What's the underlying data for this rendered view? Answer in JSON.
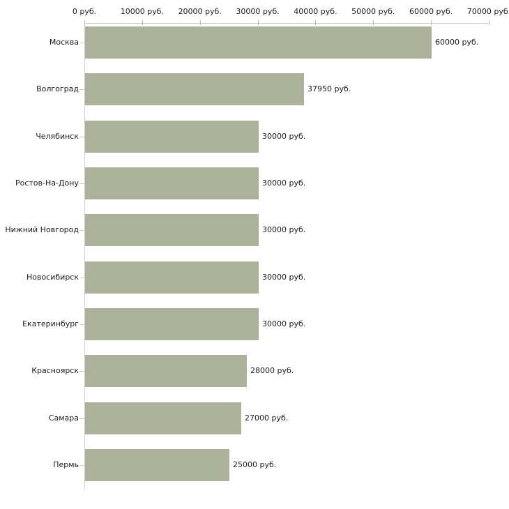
{
  "chart_data": {
    "type": "bar",
    "orientation": "horizontal",
    "title": "",
    "xlabel": "",
    "ylabel": "",
    "unit": "руб.",
    "grid": false,
    "legend": "none",
    "axis_position": "top",
    "xlim": [
      0,
      70000
    ],
    "x_ticks": [
      0,
      10000,
      20000,
      30000,
      40000,
      50000,
      60000,
      70000
    ],
    "x_tick_labels": [
      "0 руб.",
      "10000 руб.",
      "20000 руб.",
      "30000 руб.",
      "40000 руб.",
      "50000 руб.",
      "60000 руб.",
      "70000 руб."
    ],
    "categories": [
      "Москва",
      "Волгоград",
      "Челябинск",
      "Ростов-На-Дону",
      "Нижний Новгород",
      "Новосибирск",
      "Екатеринбург",
      "Красноярск",
      "Самара",
      "Пермь"
    ],
    "values": [
      60000,
      37950,
      30000,
      30000,
      30000,
      30000,
      30000,
      28000,
      27000,
      25000
    ],
    "value_labels": [
      "60000 руб.",
      "37950 руб.",
      "30000 руб.",
      "30000 руб.",
      "30000 руб.",
      "30000 руб.",
      "30000 руб.",
      "28000 руб.",
      "27000 руб.",
      "25000 руб."
    ]
  },
  "colors": {
    "bar_fill": "#acb29a",
    "axis_line": "#cfcfc6",
    "tick_mark": "#b9bc9e",
    "category_tick": "#c9c9c0",
    "text": "#1a1a1a",
    "background": "#ffffff"
  }
}
